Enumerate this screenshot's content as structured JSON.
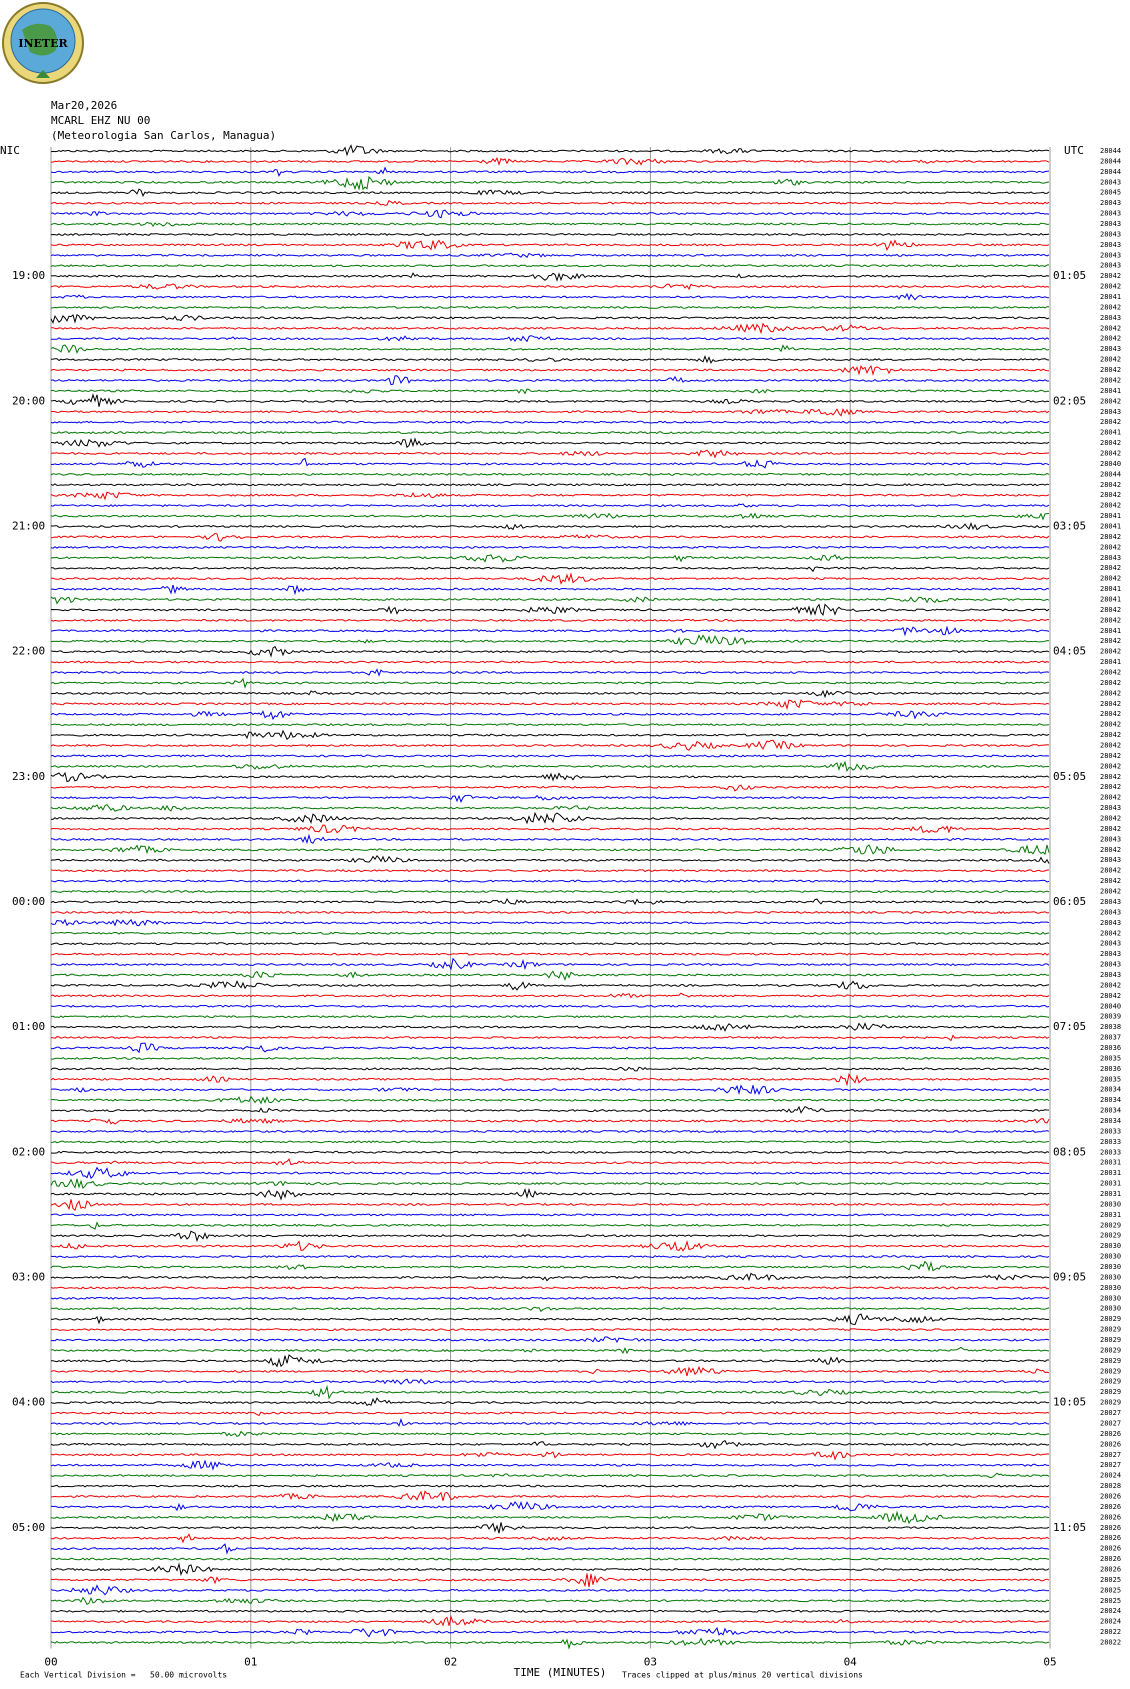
{
  "logo": "INETER",
  "header": {
    "date": "Mar20,2026",
    "station": "MCARL EHZ NU 00",
    "location": "(Meteorologia San Carlos, Managua)"
  },
  "left_label": "NIC",
  "right_label": "UTC",
  "left_times": [
    "19:00",
    "20:00",
    "21:00",
    "22:00",
    "23:00",
    "00:00",
    "01:00",
    "02:00",
    "03:00",
    "04:00",
    "05:00"
  ],
  "right_times": [
    "01:05",
    "02:05",
    "03:05",
    "04:05",
    "05:05",
    "06:05",
    "07:05",
    "08:05",
    "09:05",
    "10:05",
    "11:05"
  ],
  "trace_counts": [
    "28044",
    "28044",
    "28044",
    "28043",
    "28045",
    "28043",
    "28043",
    "28043",
    "28043",
    "28043",
    "28043",
    "28043",
    "28042",
    "28042",
    "28041",
    "28042",
    "28043",
    "28042",
    "28042",
    "28043",
    "28042",
    "28042",
    "28042",
    "28041",
    "28042",
    "28043",
    "28042",
    "28041",
    "28042",
    "28042",
    "28040",
    "28044",
    "28042",
    "28042",
    "28042",
    "28041",
    "28041",
    "28042",
    "28042",
    "28043",
    "28042",
    "28042",
    "28041",
    "28041",
    "28042",
    "28042",
    "28041",
    "28042",
    "28042",
    "28041",
    "28042",
    "28042",
    "28042",
    "28042",
    "28042",
    "28042",
    "28042",
    "28042",
    "28042",
    "28042",
    "28042",
    "28042",
    "28042",
    "28043",
    "28042",
    "28042",
    "28043",
    "28042",
    "28043",
    "28042",
    "28042",
    "28042",
    "28043",
    "28043",
    "28043",
    "28042",
    "28043",
    "28043",
    "28043",
    "28043",
    "28042",
    "28042",
    "28040",
    "28039",
    "28038",
    "28037",
    "28036",
    "28035",
    "28036",
    "28035",
    "28034",
    "28034",
    "28034",
    "28034",
    "28033",
    "28033",
    "28033",
    "28031",
    "28031",
    "28031",
    "28031",
    "28030",
    "28031",
    "28029",
    "28029",
    "28030",
    "28030",
    "28030",
    "28030",
    "28030",
    "28030",
    "28030",
    "28029",
    "28029",
    "28029",
    "28029",
    "28029",
    "28029",
    "28029",
    "28029",
    "28029",
    "28027",
    "28027",
    "28026",
    "28026",
    "28027",
    "28027",
    "28024",
    "28028",
    "28026",
    "28026",
    "28026",
    "28026",
    "28026",
    "28026",
    "28026",
    "28026",
    "28025",
    "28025",
    "28025",
    "28024",
    "28024",
    "28022",
    "28022"
  ],
  "x_axis": {
    "ticks": [
      "00",
      "01",
      "02",
      "03",
      "04",
      "05"
    ],
    "title": "TIME (MINUTES)"
  },
  "footer": {
    "scale": "Each Vertical Division =   50.00 microvolts",
    "clip": "Traces clipped at plus/minus 20 vertical divisions"
  }
}
